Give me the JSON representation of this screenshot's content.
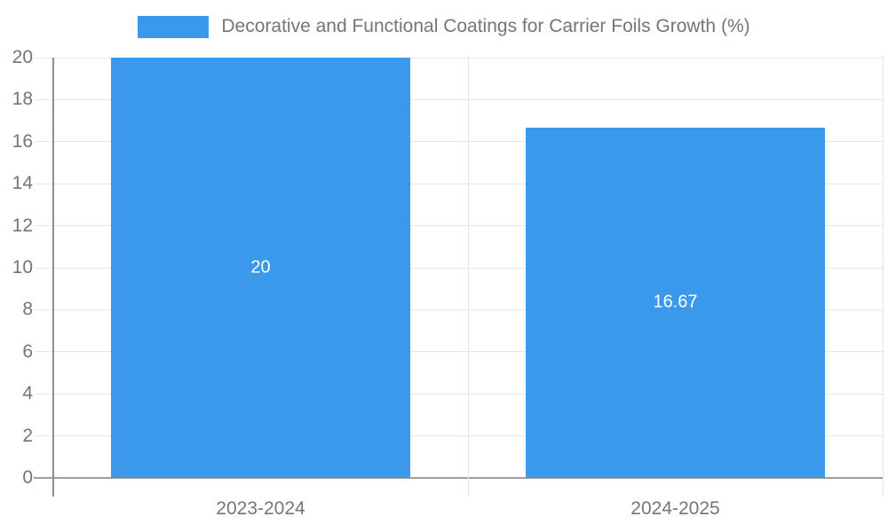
{
  "legend": {
    "label": "Decorative and Functional Coatings for Carrier Foils Growth (%)"
  },
  "chart_data": {
    "type": "bar",
    "title": "Decorative and Functional Coatings for Carrier Foils Growth (%)",
    "categories": [
      "2023-2024",
      "2024-2025"
    ],
    "values": [
      20,
      16.67
    ],
    "data_labels": [
      "20",
      "16.67"
    ],
    "ylim": [
      0,
      20
    ],
    "ytick_step": 2,
    "ytick_labels": [
      "0",
      "2",
      "4",
      "6",
      "8",
      "10",
      "12",
      "14",
      "16",
      "18",
      "20"
    ],
    "xlabel": "",
    "ylabel": "",
    "grid": true,
    "legend_position": "top-center",
    "data_label_position": "inside-center"
  },
  "colors": {
    "bar": "#3b99ec",
    "axis_text": "#757575",
    "grid_line": "#e6e6e6",
    "x_axis_line": "#9e9e9e",
    "y_axis_line": "#8f8f8f",
    "boundary_line": "#e3e3e3",
    "data_label": "#ffffff",
    "background": "#ffffff"
  }
}
